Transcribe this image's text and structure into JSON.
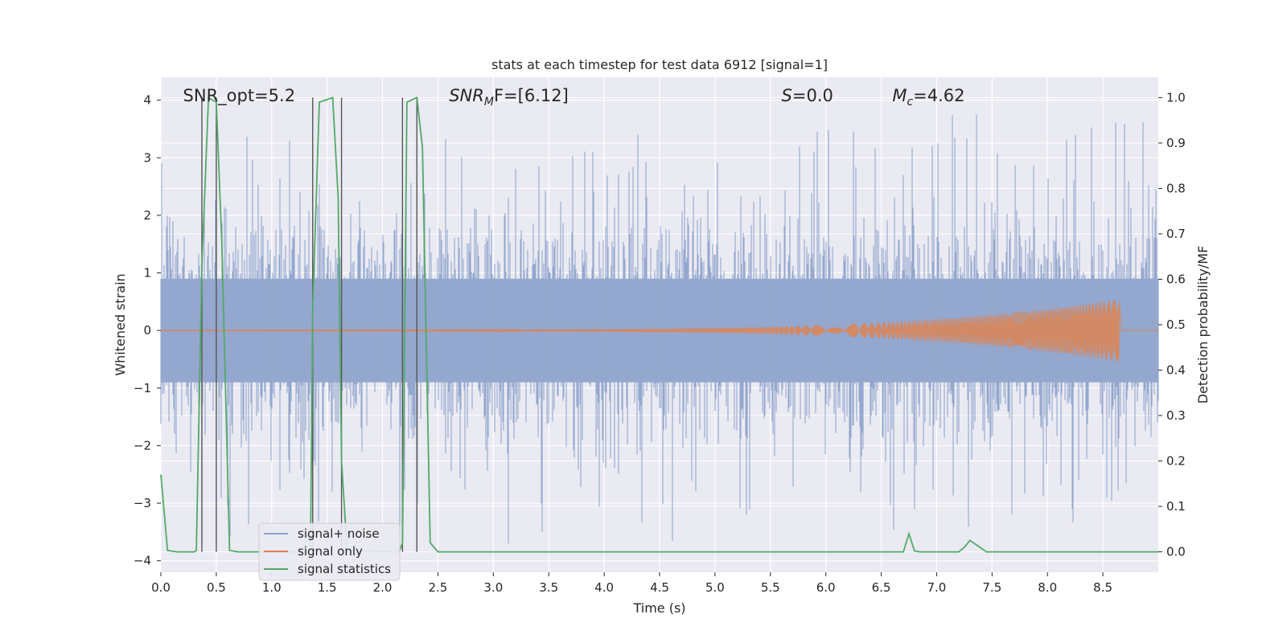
{
  "chart_data": {
    "type": "line",
    "title": "stats at each timestep for test data 6912 [signal=1]",
    "xlabel": "Time (s)",
    "ylabel": "Whitened strain",
    "y2label": "Detection probability/MF",
    "xlim": [
      0.0,
      9.0
    ],
    "ylim": [
      -4.2,
      4.4
    ],
    "y2lim": [
      -0.045,
      1.045
    ],
    "xticks": [
      "0.0",
      "0.5",
      "1.0",
      "1.5",
      "2.0",
      "2.5",
      "3.0",
      "3.5",
      "4.0",
      "4.5",
      "5.0",
      "5.5",
      "6.0",
      "6.5",
      "7.0",
      "7.5",
      "8.0",
      "8.5"
    ],
    "yticks": [
      "4",
      "3",
      "2",
      "1",
      "0",
      "−1",
      "−2",
      "−3",
      "−4"
    ],
    "y2ticks": [
      "1.0",
      "0.9",
      "0.8",
      "0.7",
      "0.6",
      "0.5",
      "0.4",
      "0.3",
      "0.2",
      "0.1",
      "0.0"
    ],
    "grid": true,
    "legend_position": "lower-left",
    "annotations": [
      {
        "id": "snr-opt",
        "text": "SNR_opt=5.2",
        "x": 0.2,
        "y": 4.08
      },
      {
        "id": "snr-mf",
        "base": "SNR",
        "sub": "M",
        "rest": "F=[6.12]",
        "x": 2.6,
        "y": 4.08
      },
      {
        "id": "s-value",
        "base": "S",
        "rest": "=0.0",
        "x": 5.6,
        "y": 4.08
      },
      {
        "id": "mc-value",
        "base": "M",
        "sub": "c",
        "rest": "=4.62",
        "x": 6.6,
        "y": 4.08
      }
    ],
    "vertical_markers": [
      0.37,
      0.5,
      1.37,
      1.63,
      2.18,
      2.31
    ],
    "series": [
      {
        "name": "signal+ noise",
        "color": "#8fa3cb",
        "description_kind": "noise-envelope",
        "typical_amplitude": 1.5,
        "peak_max": 3.85,
        "peak_min": -3.7,
        "tmax": 9.0
      },
      {
        "name": "signal only",
        "color": "#dd8452",
        "kind": "chirp",
        "t_start": 0.0,
        "t_end": 8.65,
        "amp_start": 0.01,
        "amp_end": 0.55
      },
      {
        "name": "signal statistics",
        "color": "#55a868",
        "axis": "y2",
        "x": [
          0.0,
          0.06,
          0.15,
          0.3,
          0.32,
          0.37,
          0.43,
          0.5,
          0.55,
          0.62,
          0.7,
          1.35,
          1.37,
          1.43,
          1.55,
          1.6,
          1.63,
          1.68,
          2.15,
          2.18,
          2.22,
          2.31,
          2.36,
          2.43,
          2.5,
          6.7,
          6.75,
          6.8,
          6.85,
          7.2,
          7.25,
          7.3,
          7.45,
          9.0
        ],
        "values": [
          0.17,
          0.003,
          0.0,
          0.0,
          0.003,
          0.63,
          1.0,
          0.99,
          0.68,
          0.003,
          0.0,
          0.0,
          0.54,
          0.99,
          1.0,
          0.78,
          0.2,
          0.003,
          0.0,
          0.02,
          0.99,
          1.0,
          0.89,
          0.02,
          0.0,
          0.0,
          0.04,
          0.002,
          0.0,
          0.0,
          0.01,
          0.025,
          0.0,
          0.0
        ]
      }
    ]
  }
}
